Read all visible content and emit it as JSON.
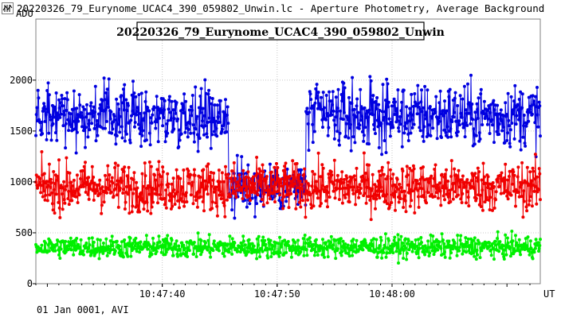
{
  "window": {
    "title": "20220326_79_Eurynome_UCAC4_390_059802_Unwin.lc - Aperture Photometry, Average Background",
    "icon": "lightcurve-app-icon"
  },
  "footer": {
    "text": "01 Jan 0001, AVI"
  },
  "chart_data": {
    "type": "scatter",
    "title": "20220326_79_Eurynome_UCAC4_390_059802_Unwin",
    "ylabel": "ADU",
    "xlabel": "UT",
    "ylim": [
      0,
      2600
    ],
    "xlim": [
      "10:47:29.0",
      "10:48:12.9"
    ],
    "yticks": [
      0,
      500,
      1000,
      1500,
      2000
    ],
    "xticks": [
      "10:47:40",
      "10:47:50",
      "10:48:00"
    ],
    "grid": true,
    "n_points": 940,
    "series": [
      {
        "color": "#0000e0",
        "marker": "circle-line",
        "segments": [
          {
            "t": [
              "10:47:29.0",
              "10:47:45.0"
            ],
            "level": 1650,
            "scatter": 200
          },
          {
            "t": [
              "10:47:46.5",
              "10:47:52.0"
            ],
            "level": 950,
            "scatter": 180
          },
          {
            "t": [
              "10:47:53.0",
              "10:48:12.9"
            ],
            "level": 1650,
            "scatter": 220
          }
        ]
      },
      {
        "color": "#f00000",
        "marker": "circle-line",
        "segments": [
          {
            "t": [
              "10:47:29.0",
              "10:48:12.9"
            ],
            "level": 950,
            "scatter": 170
          }
        ]
      },
      {
        "color": "#00f000",
        "marker": "circle-line",
        "segments": [
          {
            "t": [
              "10:47:29.0",
              "10:48:12.9"
            ],
            "level": 360,
            "scatter": 75
          }
        ]
      }
    ]
  }
}
